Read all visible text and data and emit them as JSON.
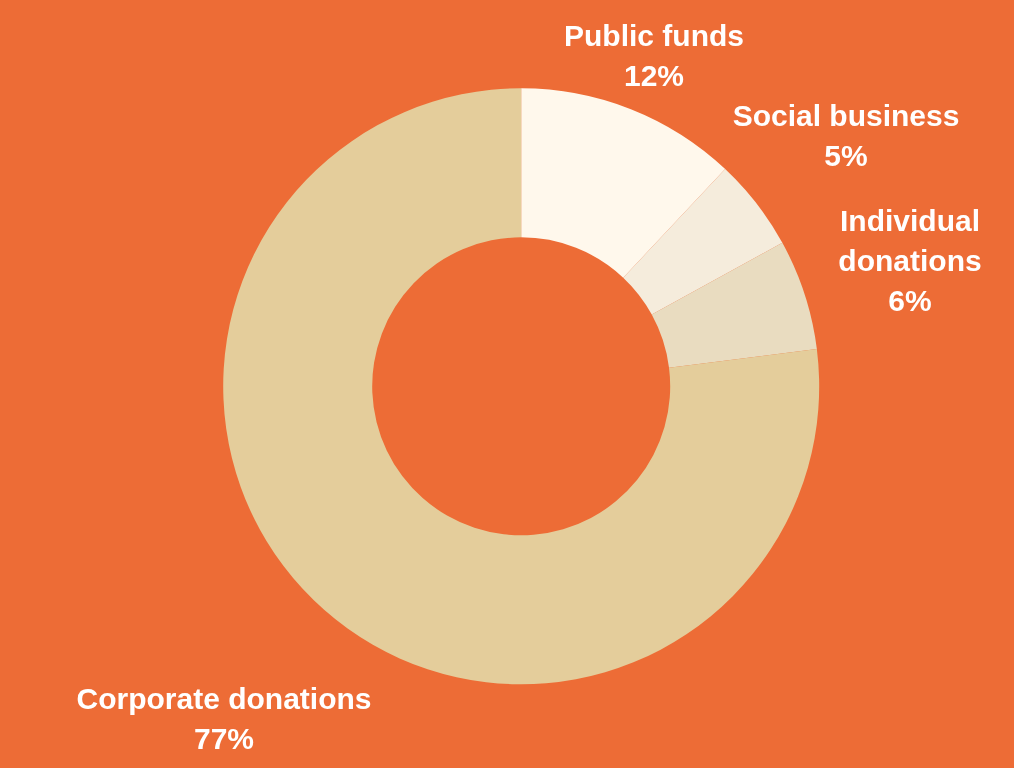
{
  "chart_data": {
    "type": "donut",
    "categories": [
      "Public funds",
      "Social business",
      "Individual donations",
      "Corporate donations"
    ],
    "values": [
      12,
      5,
      6,
      77
    ],
    "value_labels": [
      "12%",
      "5%",
      "6%",
      "77%"
    ],
    "colors": [
      "#fff8ec",
      "#f5ecdc",
      "#e9dcc0",
      "#e4cd9b"
    ]
  }
}
